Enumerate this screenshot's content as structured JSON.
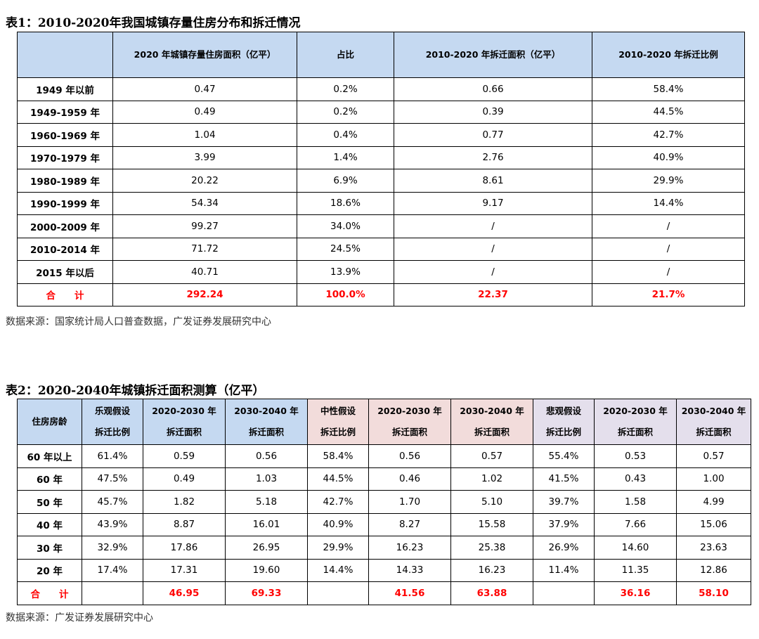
{
  "table1": {
    "title": "表1：2010-2020年我国城镇存量住房分布和拆迁情况",
    "headers": [
      "",
      "2020 年城镇存量住房面积（亿平）",
      "占比",
      "2010-2020 年拆迁面积（亿平）",
      "2010-2020 年拆迁比例"
    ],
    "rows": [
      [
        "1949 年以前",
        "0.47",
        "0.2%",
        "0.66",
        "58.4%"
      ],
      [
        "1949-1959 年",
        "0.49",
        "0.2%",
        "0.39",
        "44.5%"
      ],
      [
        "1960-1969 年",
        "1.04",
        "0.4%",
        "0.77",
        "42.7%"
      ],
      [
        "1970-1979 年",
        "3.99",
        "1.4%",
        "2.76",
        "40.9%"
      ],
      [
        "1980-1989 年",
        "20.22",
        "6.9%",
        "8.61",
        "29.9%"
      ],
      [
        "1990-1999 年",
        "54.34",
        "18.6%",
        "9.17",
        "14.4%"
      ],
      [
        "2000-2009 年",
        "99.27",
        "34.0%",
        "/",
        "/"
      ],
      [
        "2010-2014 年",
        "71.72",
        "24.5%",
        "/",
        "/"
      ],
      [
        "2015 年以后",
        "40.71",
        "13.9%",
        "/",
        "/"
      ]
    ],
    "total": [
      "合　　计",
      "292.24",
      "100.0%",
      "22.37",
      "21.7%"
    ],
    "source": "数据来源：国家统计局人口普查数据，广发证券发展研究中心"
  },
  "table2": {
    "title": "表2：2020-2040年城镇拆迁面积测算（亿平）",
    "headers": [
      "住房房龄",
      "乐观假设拆迁比例",
      "2020-2030 年拆迁面积",
      "2030-2040 年拆迁面积",
      "中性假设拆迁比例",
      "2020-2030 年拆迁面积",
      "2030-2040 年拆迁面积",
      "悲观假设拆迁比例",
      "2020-2030 年拆迁面积",
      "2030-2040 年拆迁面积"
    ],
    "rows": [
      [
        "60 年以上",
        "61.4%",
        "0.59",
        "0.56",
        "58.4%",
        "0.56",
        "0.57",
        "55.4%",
        "0.53",
        "0.57"
      ],
      [
        "60 年",
        "47.5%",
        "0.49",
        "1.03",
        "44.5%",
        "0.46",
        "1.02",
        "41.5%",
        "0.43",
        "1.00"
      ],
      [
        "50 年",
        "45.7%",
        "1.82",
        "5.18",
        "42.7%",
        "1.70",
        "5.10",
        "39.7%",
        "1.58",
        "4.99"
      ],
      [
        "40 年",
        "43.9%",
        "8.87",
        "16.01",
        "40.9%",
        "8.27",
        "15.58",
        "37.9%",
        "7.66",
        "15.06"
      ],
      [
        "30 年",
        "32.9%",
        "17.86",
        "26.95",
        "29.9%",
        "16.23",
        "25.38",
        "26.9%",
        "14.60",
        "23.63"
      ],
      [
        "20 年",
        "17.4%",
        "17.31",
        "19.60",
        "14.4%",
        "14.33",
        "16.23",
        "11.4%",
        "11.35",
        "12.86"
      ]
    ],
    "total": [
      "合　　计",
      "",
      "46.95",
      "69.33",
      "",
      "41.56",
      "63.88",
      "",
      "36.16",
      "58.10"
    ],
    "source": "数据来源：广发证券发展研究中心"
  }
}
